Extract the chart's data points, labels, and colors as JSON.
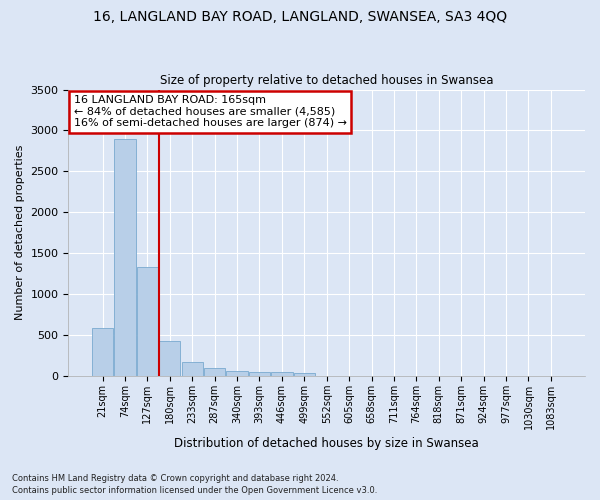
{
  "title1": "16, LANGLAND BAY ROAD, LANGLAND, SWANSEA, SA3 4QQ",
  "title2": "Size of property relative to detached houses in Swansea",
  "xlabel": "Distribution of detached houses by size in Swansea",
  "ylabel": "Number of detached properties",
  "footnote1": "Contains HM Land Registry data © Crown copyright and database right 2024.",
  "footnote2": "Contains public sector information licensed under the Open Government Licence v3.0.",
  "annotation_line1": "16 LANGLAND BAY ROAD: 165sqm",
  "annotation_line2": "← 84% of detached houses are smaller (4,585)",
  "annotation_line3": "16% of semi-detached houses are larger (874) →",
  "bar_color": "#b8cfe8",
  "bar_edge_color": "#7aaacf",
  "vline_color": "#cc0000",
  "fig_facecolor": "#dce6f5",
  "ax_facecolor": "#dce6f5",
  "categories": [
    "21sqm",
    "74sqm",
    "127sqm",
    "180sqm",
    "233sqm",
    "287sqm",
    "340sqm",
    "393sqm",
    "446sqm",
    "499sqm",
    "552sqm",
    "605sqm",
    "658sqm",
    "711sqm",
    "764sqm",
    "818sqm",
    "871sqm",
    "924sqm",
    "977sqm",
    "1030sqm",
    "1083sqm"
  ],
  "values": [
    580,
    2900,
    1330,
    420,
    165,
    90,
    55,
    45,
    45,
    30,
    0,
    0,
    0,
    0,
    0,
    0,
    0,
    0,
    0,
    0,
    0
  ],
  "vline_x": 2.5,
  "ylim": [
    0,
    3500
  ],
  "yticks": [
    0,
    500,
    1000,
    1500,
    2000,
    2500,
    3000,
    3500
  ]
}
